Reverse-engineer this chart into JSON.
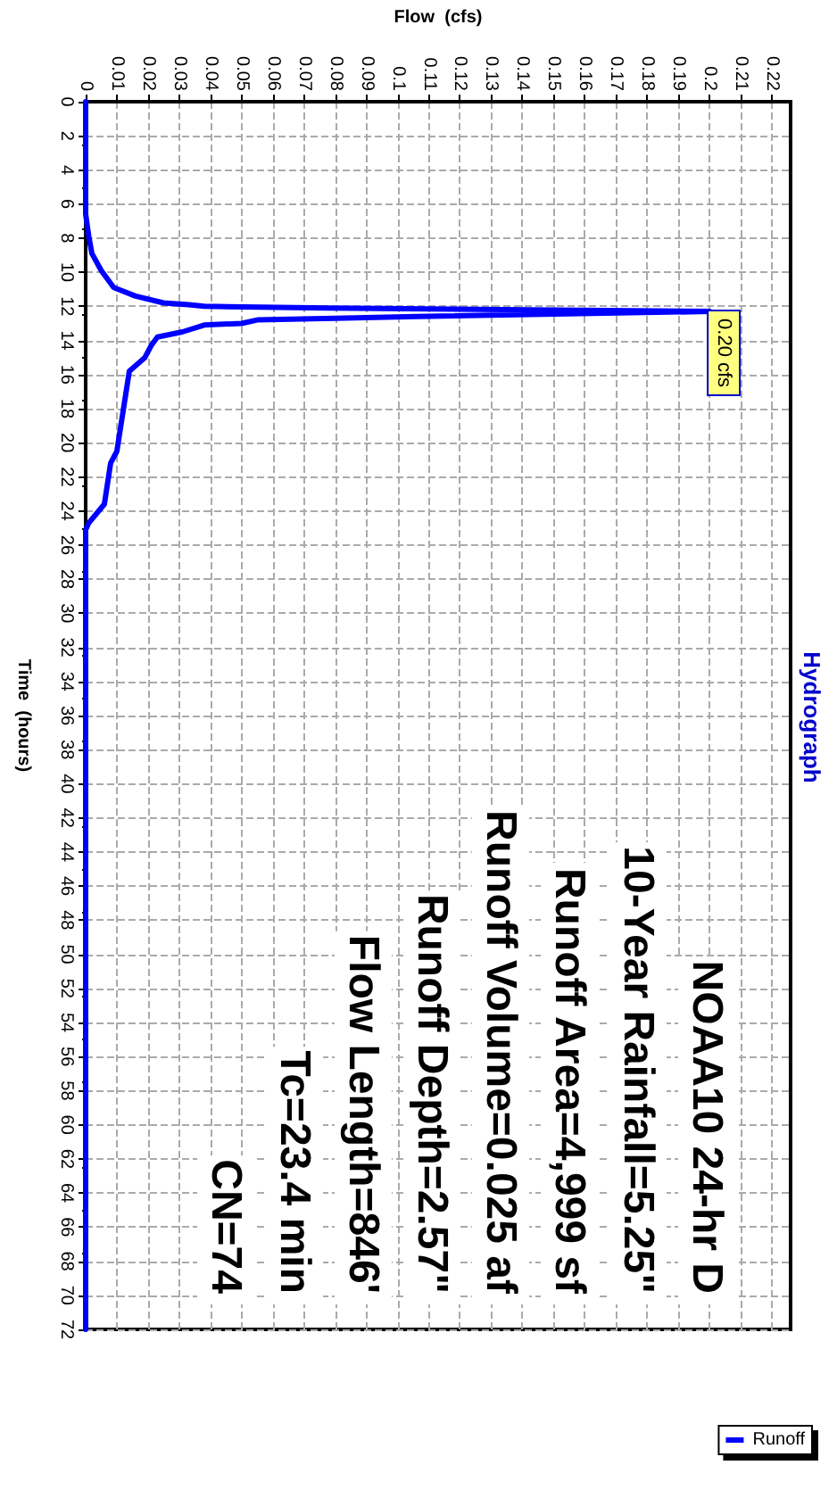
{
  "chart_data": {
    "type": "line",
    "title": "Hydrograph",
    "xlabel": "Flow  (cfs)",
    "ylabel": "Time  (hours)",
    "xlim": [
      0,
      0.226
    ],
    "xticks": [
      0,
      0.01,
      0.02,
      0.03,
      0.04,
      0.05,
      0.06,
      0.07,
      0.08,
      0.09,
      0.1,
      0.11,
      0.12,
      0.13,
      0.14,
      0.15,
      0.16,
      0.17,
      0.18,
      0.19,
      0.2,
      0.21,
      0.22
    ],
    "ylim": [
      72,
      0
    ],
    "yticks": [
      0,
      2,
      4,
      6,
      8,
      10,
      12,
      14,
      16,
      18,
      20,
      22,
      24,
      26,
      28,
      30,
      32,
      34,
      36,
      38,
      40,
      42,
      44,
      46,
      48,
      50,
      52,
      54,
      56,
      58,
      60,
      62,
      64,
      66,
      68,
      70,
      72
    ],
    "grid": true,
    "legend": "bottom right",
    "marker": "none",
    "line_style": "solid",
    "x": [
      0,
      0,
      0.001,
      0.002,
      0.005,
      0.009,
      0.016,
      0.025,
      0.033,
      0.038,
      0.078,
      0.2,
      0.106,
      0.08,
      0.055,
      0.05,
      0.038,
      0.031,
      0.023,
      0.021,
      0.019,
      0.014,
      0.01,
      0.008,
      0.006,
      0.001,
      0,
      0
    ],
    "series": [
      {
        "name": "Runoff",
        "color": "#0000ff",
        "values": [
          0,
          6.6,
          7.9,
          8.9,
          9.9,
          10.9,
          11.4,
          11.8,
          11.9,
          12.0,
          12.1,
          12.3,
          12.6,
          12.7,
          12.8,
          13.0,
          13.1,
          13.5,
          13.8,
          14.3,
          15.0,
          15.8,
          20.5,
          21.2,
          23.6,
          24.7,
          25.1,
          72
        ]
      }
    ],
    "annotations": [
      {
        "text": "0.20 cfs",
        "x": 0.2,
        "y": 12.3
      },
      "NOAA10 24-hr D",
      "10-Year Rainfall=5.25\"",
      "Runoff Area=4,999 sf",
      "Runoff Volume=0.025 af",
      "Runoff Depth=2.57\"",
      "Flow Length=846'",
      "Tc=23.4 min",
      "CN=74"
    ]
  }
}
